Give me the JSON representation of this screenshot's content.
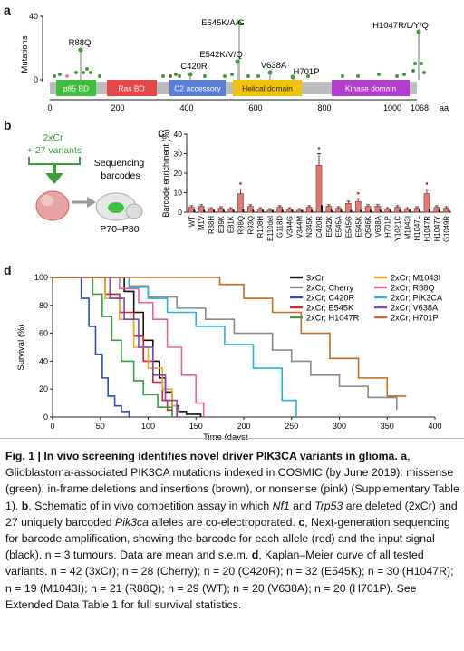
{
  "panels": {
    "a": "a",
    "b": "b",
    "c": "c",
    "d": "d"
  },
  "panel_a": {
    "ylabel": "Mutations",
    "yticks": [
      "40",
      "0"
    ],
    "xunit": "aa",
    "xticks": [
      "0",
      "200",
      "400",
      "600",
      "800",
      "1000",
      "1068"
    ],
    "domains": [
      "p85 BD",
      "Ras BD",
      "C2 accessory",
      "Helical domain",
      "Kinase domain"
    ],
    "labels": [
      "E545K/A/G",
      "R88Q",
      "E542K/V/Q",
      "C420R",
      "V638A",
      "H701P",
      "H1047R/L/Y/Q"
    ],
    "colors": {
      "missense": "#3f9b3f",
      "inframe": "#8a5a2b",
      "nonsense": "#e58aa6",
      "p85": "#3fbf3f",
      "ras": "#e8474a",
      "c2": "#5b7fd6",
      "helical": "#f2c40c",
      "kinase": "#b43ccf"
    }
  },
  "panel_b": {
    "condition": "2xCr\n+ 27 variants",
    "sequencing": "Sequencing\nbarcodes",
    "age": "P70–P80"
  },
  "chart_data": [
    {
      "type": "bar",
      "ylabel": "Barcode enrichment (%)",
      "ylim": [
        0,
        40
      ],
      "yticks": [
        0,
        10,
        20,
        30,
        40
      ],
      "categories": [
        "WT",
        "M1V",
        "R38H",
        "E39K",
        "E81K",
        "R88Q",
        "R93Q",
        "R108H",
        "E110del",
        "G118D",
        "V344G",
        "V344M",
        "N345K",
        "C420R",
        "E542K",
        "E545A",
        "E545G",
        "E545K",
        "Q546K",
        "V638A",
        "H701P",
        "Y1021C",
        "M1043I",
        "H1047L",
        "H1047R",
        "H1047Y",
        "G1049R"
      ],
      "series": [
        {
          "values": [
            2.5,
            3,
            1.5,
            2,
            1.5,
            9.5,
            3,
            1.5,
            1,
            2.5,
            1.5,
            1,
            2.5,
            24,
            3,
            2,
            4.5,
            5.5,
            3,
            3,
            1.5,
            2.5,
            1.5,
            2,
            9.5,
            2.5,
            2
          ]
        }
      ]
    },
    {
      "type": "line",
      "xlabel": "Time (days)",
      "ylabel": "Survival (%)",
      "xlim": [
        0,
        400
      ],
      "ylim": [
        0,
        100
      ],
      "xticks": [
        0,
        50,
        100,
        150,
        200,
        250,
        300,
        350,
        400
      ],
      "yticks": [
        0,
        20,
        40,
        60,
        80,
        100
      ],
      "legend_position": "top-right",
      "series": [
        {
          "name": "3xCr",
          "color": "#111111",
          "x": [
            0,
            60,
            75,
            85,
            95,
            105,
            112,
            118,
            125,
            132,
            140,
            155
          ],
          "y": [
            100,
            100,
            90,
            75,
            55,
            40,
            28,
            18,
            8,
            4,
            2,
            0
          ]
        },
        {
          "name": "2xCr; Cherry",
          "color": "#8a8a8a",
          "x": [
            0,
            60,
            80,
            100,
            130,
            160,
            190,
            230,
            250,
            270,
            300,
            330,
            360
          ],
          "y": [
            100,
            100,
            94,
            86,
            78,
            70,
            60,
            48,
            40,
            30,
            22,
            14,
            5
          ]
        },
        {
          "name": "2xCr; C420R",
          "color": "#2a4fb6",
          "x": [
            0,
            22,
            30,
            38,
            45,
            52,
            58,
            65,
            72,
            80
          ],
          "y": [
            100,
            100,
            85,
            65,
            45,
            28,
            15,
            8,
            4,
            0
          ]
        },
        {
          "name": "2xCr; E545K",
          "color": "#d8202a",
          "x": [
            0,
            40,
            55,
            70,
            85,
            95,
            105,
            115,
            120,
            125
          ],
          "y": [
            100,
            100,
            88,
            75,
            58,
            40,
            25,
            12,
            5,
            0
          ]
        },
        {
          "name": "2xCr; H1047R",
          "color": "#3a9f3a",
          "x": [
            0,
            30,
            42,
            52,
            62,
            72,
            85,
            95,
            110,
            125
          ],
          "y": [
            100,
            100,
            88,
            72,
            55,
            40,
            26,
            16,
            7,
            0
          ]
        },
        {
          "name": "2xCr; M1043I",
          "color": "#f3a51a",
          "x": [
            0,
            40,
            55,
            70,
            85,
            100,
            115,
            125,
            130
          ],
          "y": [
            100,
            100,
            85,
            70,
            50,
            35,
            20,
            8,
            0
          ]
        },
        {
          "name": "2xCr; R88Q",
          "color": "#ef5fa0",
          "x": [
            0,
            55,
            70,
            90,
            105,
            120,
            135,
            150,
            158
          ],
          "y": [
            100,
            100,
            92,
            82,
            70,
            50,
            30,
            10,
            0
          ]
        },
        {
          "name": "2xCr; PIK3CA",
          "color": "#29b2df",
          "x": [
            0,
            60,
            80,
            100,
            120,
            150,
            180,
            210,
            240,
            255
          ],
          "y": [
            100,
            100,
            93,
            85,
            75,
            65,
            52,
            35,
            12,
            0
          ]
        },
        {
          "name": "2xCr; V638A",
          "color": "#7a48b4",
          "x": [
            0,
            45,
            60,
            75,
            90,
            105,
            118,
            130
          ],
          "y": [
            100,
            100,
            85,
            70,
            50,
            30,
            12,
            0
          ]
        },
        {
          "name": "2xCr; H701P",
          "color": "#c96b1f",
          "x": [
            0,
            150,
            175,
            200,
            230,
            260,
            290,
            320,
            350,
            370
          ],
          "y": [
            100,
            100,
            95,
            85,
            75,
            60,
            42,
            28,
            15,
            15
          ]
        }
      ]
    }
  ],
  "caption": {
    "title": "Fig. 1 | In vivo screening identifies novel driver PIK3CA variants in glioma.",
    "a_label": "a",
    "a_text": ", Glioblastoma-associated PIK3CA mutations indexed in COSMIC (by June 2019): missense (green), in-frame deletions and insertions (brown), or nonsense (pink) (Supplementary Table 1). ",
    "b_label": "b",
    "b_text1": ", Schematic of in vivo competition assay in which ",
    "nf1": "Nf1",
    "and": " and ",
    "trp53": "Trp53",
    "b_text2": " are deleted (2xCr) and 27 uniquely barcoded ",
    "pik3ca": "Pik3ca",
    "b_text3": " alleles are co-electroporated. ",
    "c_label": "c",
    "c_text": ", Next-generation sequencing for barcode amplification, showing the barcode for each allele (red) and the input signal (black). n = 3 tumours. Data are mean and s.e.m. ",
    "d_label": "d",
    "d_text": ", Kaplan–Meier curve of all tested variants. n = 42 (3xCr); n = 28 (Cherry); n = 20 (C420R); n = 32 (E545K); n = 30 (H1047R); n = 19 (M1043I); n = 21 (R88Q); n = 29 (WT); n = 20 (V638A); n = 20 (H701P). See Extended Data Table 1 for full survival statistics."
  }
}
